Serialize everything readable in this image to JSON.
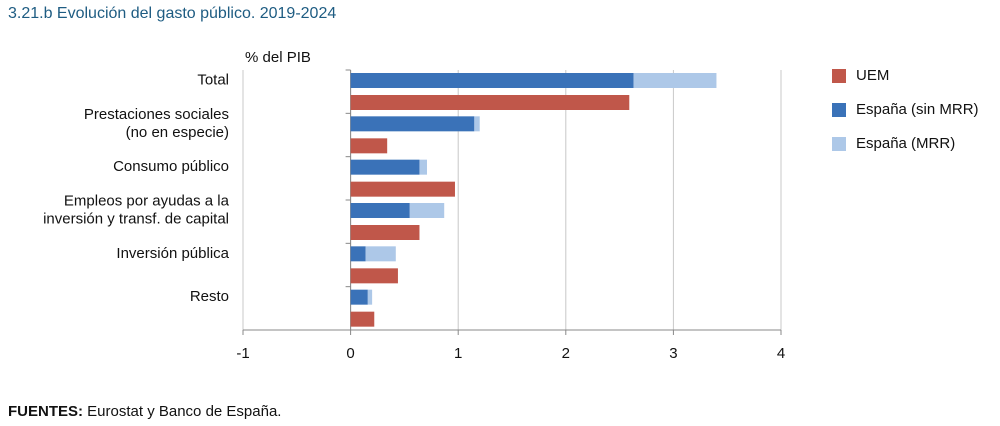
{
  "chart_data": {
    "type": "bar",
    "orientation": "horizontal",
    "title": "3.21.b  Evolución del gasto público. 2019-2024",
    "xlabel": "% del PIB",
    "categories": [
      [
        "Total"
      ],
      [
        "Prestaciones sociales",
        "(no en especie)"
      ],
      [
        "Consumo público"
      ],
      [
        "Empleos por ayudas a la",
        "inversión y transf. de capital"
      ],
      [
        "Inversión pública"
      ],
      [
        "Resto"
      ]
    ],
    "series": [
      {
        "name": "UEM",
        "color": "#c0574a",
        "values": [
          2.59,
          0.34,
          0.97,
          0.64,
          0.44,
          0.22
        ]
      },
      {
        "name": "España (sin MRR)",
        "color": "#3a72b8",
        "values": [
          2.63,
          1.15,
          0.64,
          0.55,
          0.14,
          0.16
        ]
      },
      {
        "name": "España (MRR)",
        "color": "#adc8e8",
        "values": [
          0.77,
          0.05,
          0.07,
          0.32,
          0.28,
          0.04
        ],
        "stacked": true
      }
    ],
    "xlim": [
      -1,
      4
    ],
    "xticks": [
      -1,
      0,
      1,
      2,
      3,
      4
    ],
    "grid": true,
    "legend": "right",
    "source": {
      "label": "FUENTES:",
      "text": "Eurostat y Banco de España."
    }
  }
}
